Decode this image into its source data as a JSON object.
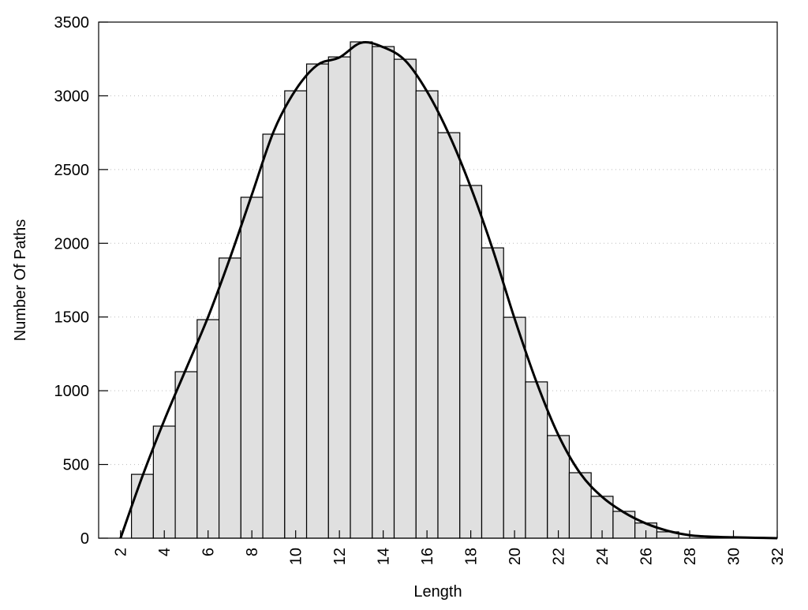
{
  "chart_data": {
    "type": "bar",
    "title": "",
    "xlabel": "Length",
    "ylabel": "Number Of Paths",
    "xlim": [
      1,
      32
    ],
    "ylim": [
      0,
      3500
    ],
    "grid": "horizontal dotted",
    "xticks": [
      2,
      4,
      6,
      8,
      10,
      12,
      14,
      16,
      18,
      20,
      22,
      24,
      26,
      28,
      30,
      32
    ],
    "yticks": [
      0,
      500,
      1000,
      1500,
      2000,
      2500,
      3000,
      3500
    ],
    "bar_color": "#e0e0e0",
    "bars": {
      "x": [
        3,
        4,
        5,
        6,
        7,
        8,
        9,
        10,
        11,
        12,
        13,
        14,
        15,
        16,
        17,
        18,
        19,
        20,
        21,
        22,
        23,
        24,
        25,
        26,
        27
      ],
      "values": [
        433,
        760,
        1129,
        1482,
        1900,
        2312,
        2740,
        3034,
        3216,
        3264,
        3366,
        3334,
        3248,
        3034,
        2750,
        2392,
        1969,
        1498,
        1060,
        696,
        444,
        284,
        182,
        103,
        43
      ]
    },
    "curve": {
      "x": [
        2,
        3,
        4,
        5,
        6,
        7,
        8,
        9,
        10,
        11,
        12,
        13,
        14,
        15,
        16,
        17,
        18,
        19,
        20,
        21,
        22,
        23,
        24,
        25,
        26,
        27,
        28,
        29,
        30,
        31,
        32
      ],
      "values": [
        0,
        420,
        800,
        1150,
        1500,
        1900,
        2330,
        2760,
        3040,
        3210,
        3260,
        3360,
        3330,
        3240,
        3030,
        2740,
        2380,
        1960,
        1490,
        1060,
        700,
        440,
        280,
        175,
        100,
        50,
        20,
        10,
        6,
        3,
        0
      ]
    }
  }
}
